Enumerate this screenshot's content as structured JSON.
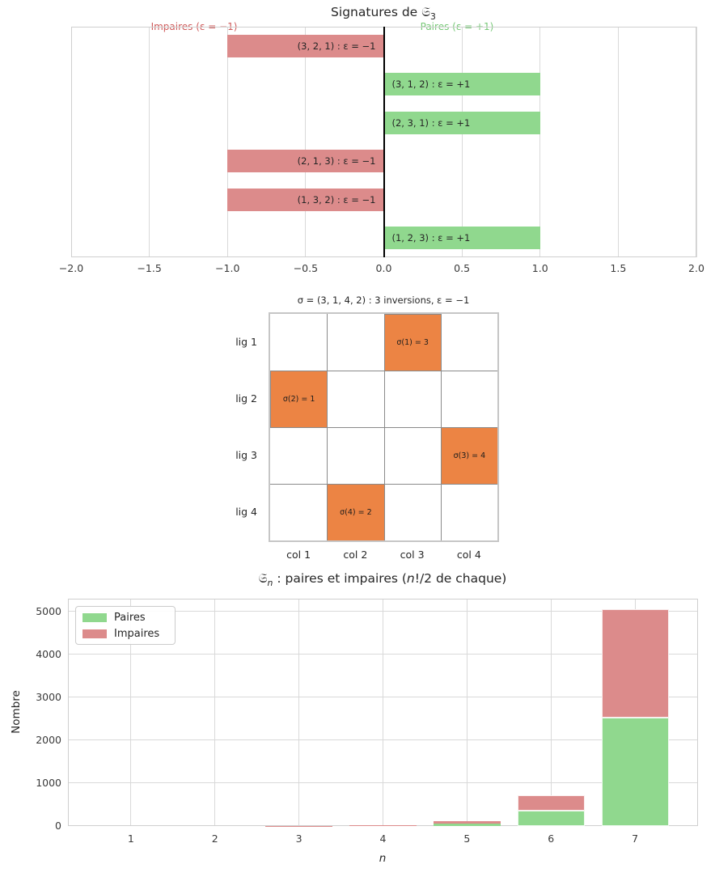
{
  "colors": {
    "green_bar": "#90d88e",
    "red_bar": "#dc8b8b",
    "orange_cell": "#ec8444",
    "red_text": "#cf5b5b",
    "green_text": "#77c877",
    "grid": "#d9d9d9",
    "zero_line": "#000000"
  },
  "chart_data": [
    {
      "id": "signatures",
      "type": "bar",
      "orientation": "horizontal",
      "title_parts": {
        "prefix": "Signatures de ",
        "symbol": "𝔖",
        "subscript": "3"
      },
      "annotations": [
        {
          "name": "impaires",
          "text": "Impaires (ε = −1)",
          "side": "left"
        },
        {
          "name": "paires",
          "text": "Paires (ε = +1)",
          "side": "right"
        }
      ],
      "bars": [
        {
          "label": "(3, 2, 1) : ε = −1",
          "value": -1,
          "sign": "impaire"
        },
        {
          "label": "(3, 1, 2) : ε = +1",
          "value": 1,
          "sign": "paire"
        },
        {
          "label": "(2, 3, 1) : ε = +1",
          "value": 1,
          "sign": "paire"
        },
        {
          "label": "(2, 1, 3) : ε = −1",
          "value": -1,
          "sign": "impaire"
        },
        {
          "label": "(1, 3, 2) : ε = −1",
          "value": -1,
          "sign": "impaire"
        },
        {
          "label": "(1, 2, 3) : ε = +1",
          "value": 1,
          "sign": "paire"
        }
      ],
      "xlim": [
        -2,
        2
      ],
      "xticks": [
        {
          "label": "−2.0",
          "value": -2.0
        },
        {
          "label": "−1.5",
          "value": -1.5
        },
        {
          "label": "−1.0",
          "value": -1.0
        },
        {
          "label": "−0.5",
          "value": -0.5
        },
        {
          "label": "0.0",
          "value": 0.0
        },
        {
          "label": "0.5",
          "value": 0.5
        },
        {
          "label": "1.0",
          "value": 1.0
        },
        {
          "label": "1.5",
          "value": 1.5
        },
        {
          "label": "2.0",
          "value": 2.0
        }
      ],
      "grid": "vertical",
      "zero_axis": true
    },
    {
      "id": "permutation-matrix",
      "type": "heatmap",
      "title": "σ = (3, 1, 4, 2) : 3 inversions, ε = −1",
      "row_labels": [
        "lig 1",
        "lig 2",
        "lig 3",
        "lig 4"
      ],
      "col_labels": [
        "col 1",
        "col 2",
        "col 3",
        "col 4"
      ],
      "filled_cells": [
        {
          "row": 1,
          "col": 3,
          "label": "σ(1) = 3"
        },
        {
          "row": 2,
          "col": 1,
          "label": "σ(2) = 1"
        },
        {
          "row": 3,
          "col": 4,
          "label": "σ(3) = 4"
        },
        {
          "row": 4,
          "col": 2,
          "label": "σ(4) = 2"
        }
      ]
    },
    {
      "id": "counts",
      "type": "bar",
      "stacked": true,
      "title_parts": {
        "symbol": "𝔖",
        "subscript": "n",
        "rest1": " : paires et impaires (",
        "var": "n",
        "rest2": "!/2 de chaque)"
      },
      "categories": [
        1,
        2,
        3,
        4,
        5,
        6,
        7
      ],
      "series": [
        {
          "name": "Paires",
          "color_key": "green_bar",
          "values": [
            0.5,
            1,
            3,
            12,
            60,
            360,
            2520
          ]
        },
        {
          "name": "Impaires",
          "color_key": "red_bar",
          "values": [
            0.5,
            1,
            3,
            12,
            60,
            360,
            2520
          ]
        }
      ],
      "xlabel": "n",
      "ylabel": "Nombre",
      "ylim": [
        0,
        5292
      ],
      "yticks": [
        {
          "label": "0",
          "value": 0
        },
        {
          "label": "1000",
          "value": 1000
        },
        {
          "label": "2000",
          "value": 2000
        },
        {
          "label": "3000",
          "value": 3000
        },
        {
          "label": "4000",
          "value": 4000
        },
        {
          "label": "5000",
          "value": 5000
        }
      ],
      "xticks": [
        {
          "label": "1",
          "value": 1
        },
        {
          "label": "2",
          "value": 2
        },
        {
          "label": "3",
          "value": 3
        },
        {
          "label": "4",
          "value": 4
        },
        {
          "label": "5",
          "value": 5
        },
        {
          "label": "6",
          "value": 6
        },
        {
          "label": "7",
          "value": 7
        }
      ],
      "legend": {
        "position": "upper-left",
        "entries": [
          "Paires",
          "Impaires"
        ]
      },
      "grid": "both"
    }
  ]
}
